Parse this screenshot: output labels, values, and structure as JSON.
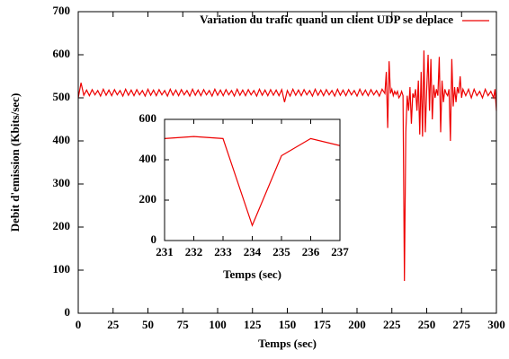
{
  "chart_data": [
    {
      "type": "line",
      "x_label": "Temps (sec)",
      "y_label": "Debit d'emission (Kbits/sec)",
      "xlim": [
        0,
        300
      ],
      "ylim": [
        0,
        700
      ],
      "xticks": [
        0,
        25,
        50,
        75,
        100,
        125,
        150,
        175,
        200,
        225,
        250,
        275,
        300
      ],
      "yticks": [
        0,
        100,
        200,
        300,
        400,
        500,
        600,
        700
      ],
      "legend": "top-right",
      "x": [
        0,
        2,
        4,
        6,
        8,
        10,
        12,
        14,
        16,
        18,
        20,
        22,
        24,
        26,
        28,
        30,
        32,
        34,
        36,
        38,
        40,
        42,
        44,
        46,
        48,
        50,
        52,
        54,
        56,
        58,
        60,
        62,
        64,
        66,
        68,
        70,
        72,
        74,
        76,
        78,
        80,
        82,
        84,
        86,
        88,
        90,
        92,
        94,
        96,
        98,
        100,
        102,
        104,
        106,
        108,
        110,
        112,
        114,
        116,
        118,
        120,
        122,
        124,
        126,
        128,
        130,
        132,
        134,
        136,
        138,
        140,
        142,
        144,
        146,
        148,
        150,
        152,
        154,
        156,
        158,
        160,
        162,
        164,
        166,
        168,
        170,
        172,
        174,
        176,
        178,
        180,
        182,
        184,
        186,
        188,
        190,
        192,
        194,
        196,
        198,
        200,
        202,
        204,
        206,
        208,
        210,
        212,
        214,
        216,
        218,
        220,
        221,
        222,
        223,
        224,
        225,
        226,
        227,
        228,
        229,
        230,
        231,
        232,
        233,
        234,
        235,
        236,
        237,
        238,
        239,
        240,
        241,
        242,
        243,
        244,
        245,
        246,
        247,
        248,
        249,
        250,
        251,
        252,
        253,
        254,
        255,
        256,
        257,
        258,
        259,
        260,
        261,
        262,
        263,
        264,
        265,
        266,
        267,
        268,
        269,
        270,
        271,
        272,
        273,
        274,
        275,
        276,
        278,
        280,
        282,
        284,
        286,
        288,
        290,
        292,
        294,
        296,
        298,
        299,
        300
      ],
      "series": [
        {
          "name": "Variation du trafic quand un client UDP se deplace",
          "color": "#ee0000",
          "values": [
            500,
            535,
            506,
            518,
            505,
            519,
            507,
            517,
            504,
            520,
            506,
            518,
            505,
            519,
            507,
            517,
            504,
            520,
            506,
            518,
            505,
            519,
            507,
            517,
            504,
            520,
            506,
            518,
            505,
            519,
            507,
            517,
            504,
            520,
            506,
            518,
            505,
            519,
            507,
            517,
            504,
            520,
            506,
            518,
            505,
            519,
            507,
            517,
            504,
            520,
            506,
            518,
            505,
            519,
            507,
            517,
            504,
            520,
            506,
            518,
            505,
            519,
            507,
            517,
            504,
            520,
            506,
            518,
            505,
            519,
            506,
            518,
            505,
            519,
            490,
            517,
            504,
            520,
            506,
            518,
            505,
            519,
            507,
            517,
            504,
            520,
            506,
            518,
            505,
            519,
            507,
            517,
            504,
            520,
            506,
            518,
            505,
            519,
            507,
            517,
            504,
            520,
            506,
            518,
            505,
            519,
            507,
            517,
            504,
            520,
            510,
            560,
            430,
            585,
            510,
            520,
            505,
            515,
            508,
            515,
            500,
            505,
            515,
            505,
            75,
            420,
            505,
            470,
            525,
            440,
            510,
            500,
            520,
            470,
            540,
            415,
            560,
            410,
            610,
            420,
            520,
            600,
            470,
            590,
            450,
            530,
            500,
            520,
            505,
            595,
            420,
            540,
            490,
            520,
            510,
            505,
            520,
            400,
            590,
            480,
            525,
            490,
            525,
            510,
            550,
            500,
            520,
            505,
            520,
            500,
            520,
            505,
            515,
            500,
            520,
            505,
            515,
            500,
            520,
            470
          ]
        }
      ]
    },
    {
      "type": "line",
      "x_label": "Temps (sec)",
      "xlim": [
        231,
        237
      ],
      "ylim": [
        0,
        600
      ],
      "xticks": [
        231,
        232,
        233,
        234,
        235,
        236,
        237
      ],
      "yticks": [
        0,
        200,
        400,
        600
      ],
      "x": [
        231,
        232,
        233,
        234,
        235,
        236,
        237
      ],
      "series": [
        {
          "color": "#ee0000",
          "values": [
            505,
            515,
            505,
            75,
            420,
            505,
            470
          ]
        }
      ]
    }
  ]
}
